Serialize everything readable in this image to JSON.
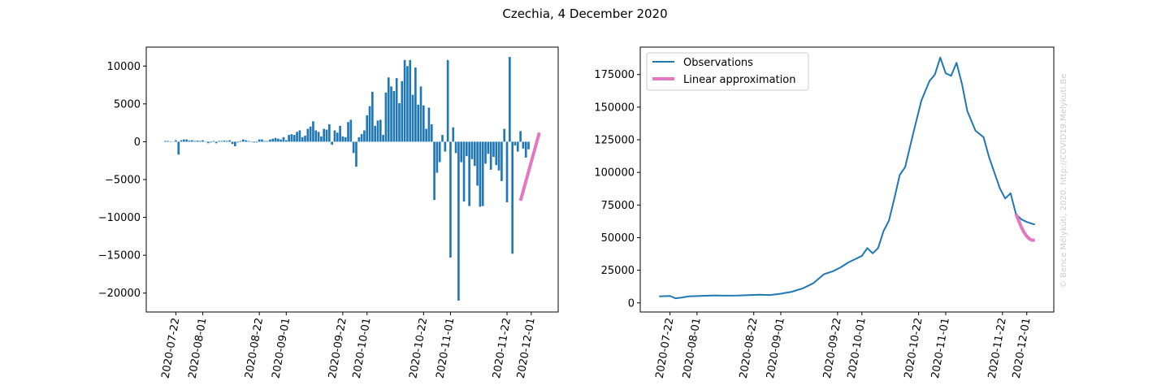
{
  "figure": {
    "title": "Czechia, 4 December 2020",
    "watermark": "© Bence Mélykúti, 2020. http://COVID19.Melykuti.Be"
  },
  "colors": {
    "observations": "#1f77b4",
    "approximation": "#e377c2"
  },
  "chart_data": [
    {
      "type": "bar",
      "date_ticks": [
        "2020-07-22",
        "2020-08-01",
        "2020-08-22",
        "2020-09-01",
        "2020-09-22",
        "2020-10-01",
        "2020-10-22",
        "2020-11-01",
        "2020-11-22",
        "2020-12-01"
      ],
      "y_ticks": [
        "10000",
        "5000",
        "0",
        "−5000",
        "−10000",
        "−15000",
        "−20000"
      ],
      "xlim": [
        "2020-07-11",
        "2020-12-11"
      ],
      "ylim": [
        -22500,
        12500
      ],
      "start_date": "2020-07-18",
      "values": [
        100,
        100,
        50,
        0,
        200,
        -1700,
        200,
        300,
        300,
        150,
        200,
        100,
        150,
        100,
        200,
        50,
        -200,
        -100,
        100,
        -200,
        100,
        100,
        150,
        100,
        200,
        -300,
        -600,
        -100,
        100,
        300,
        200,
        100,
        -50,
        -100,
        -100,
        300,
        300,
        100,
        100,
        300,
        400,
        500,
        400,
        300,
        600,
        200,
        900,
        1000,
        900,
        1300,
        1500,
        600,
        800,
        1700,
        2000,
        2700,
        1500,
        1300,
        700,
        1700,
        1600,
        2300,
        -400,
        1500,
        1200,
        2100,
        700,
        600,
        2600,
        2900,
        -1500,
        -3300,
        600,
        1000,
        1500,
        3500,
        4700,
        6600,
        2100,
        2800,
        2900,
        900,
        6500,
        8500,
        7300,
        6700,
        8400,
        5100,
        8000,
        10800,
        10000,
        10800,
        6200,
        9800,
        4900,
        7300,
        4800,
        1700,
        4500,
        2300,
        -7700,
        -4100,
        -2700,
        900,
        -1300,
        10800,
        -15300,
        1900,
        -1500,
        -21000,
        -2700,
        -7900,
        -1900,
        -8500,
        -2300,
        -3200,
        -5800,
        -8600,
        -8500,
        -2900,
        -1600,
        -3700,
        -2000,
        -3100,
        -3800,
        -5200,
        1700,
        -8000,
        11200,
        -14800,
        -500,
        -1300,
        1400,
        -900,
        -2100,
        -1000
      ],
      "series": [
        {
          "name": "",
          "kind": "linear",
          "x": [
            "2020-11-27",
            "2020-12-04"
          ],
          "y": [
            -7800,
            1200
          ]
        }
      ]
    },
    {
      "type": "line",
      "date_ticks": [
        "2020-07-22",
        "2020-08-01",
        "2020-08-22",
        "2020-09-01",
        "2020-09-22",
        "2020-10-01",
        "2020-10-22",
        "2020-11-01",
        "2020-11-22",
        "2020-12-01"
      ],
      "y_ticks": [
        "0",
        "25000",
        "50000",
        "75000",
        "100000",
        "125000",
        "150000",
        "175000"
      ],
      "xlim": [
        "2020-07-11",
        "2020-12-11"
      ],
      "ylim": [
        -7000,
        196000
      ],
      "legend": [
        "Observations",
        "Linear approximation"
      ],
      "legend_position": "top-left",
      "series": [
        {
          "name": "Observations",
          "x": [
            "2020-07-18",
            "2020-07-22",
            "2020-07-24",
            "2020-07-26",
            "2020-07-29",
            "2020-08-02",
            "2020-08-05",
            "2020-08-08",
            "2020-08-12",
            "2020-08-16",
            "2020-08-20",
            "2020-08-24",
            "2020-08-28",
            "2020-09-01",
            "2020-09-05",
            "2020-09-09",
            "2020-09-13",
            "2020-09-17",
            "2020-09-20",
            "2020-09-23",
            "2020-09-26",
            "2020-09-29",
            "2020-10-01",
            "2020-10-03",
            "2020-10-05",
            "2020-10-07",
            "2020-10-09",
            "2020-10-11",
            "2020-10-13",
            "2020-10-15",
            "2020-10-17",
            "2020-10-20",
            "2020-10-23",
            "2020-10-26",
            "2020-10-28",
            "2020-10-30",
            "2020-11-01",
            "2020-11-03",
            "2020-11-05",
            "2020-11-07",
            "2020-11-09",
            "2020-11-12",
            "2020-11-15",
            "2020-11-17",
            "2020-11-19",
            "2020-11-21",
            "2020-11-23",
            "2020-11-25",
            "2020-11-27",
            "2020-11-29",
            "2020-12-01",
            "2020-12-04"
          ],
          "y": [
            5000,
            5300,
            3500,
            4000,
            5000,
            5300,
            5500,
            5700,
            5500,
            5600,
            5900,
            6200,
            6000,
            7000,
            8500,
            11000,
            15000,
            22000,
            24000,
            27000,
            31000,
            34000,
            36000,
            42000,
            38000,
            42000,
            55000,
            63000,
            80000,
            98000,
            104000,
            130000,
            155000,
            170000,
            175000,
            188000,
            176000,
            174000,
            184000,
            168000,
            147000,
            132000,
            127000,
            112000,
            100000,
            88000,
            80000,
            84000,
            68000,
            64000,
            62000,
            60000
          ]
        },
        {
          "name": "Linear approximation",
          "kind": "decay",
          "x": [
            "2020-11-27",
            "2020-11-28",
            "2020-11-29",
            "2020-11-30",
            "2020-12-01",
            "2020-12-02",
            "2020-12-03",
            "2020-12-04"
          ],
          "y": [
            68000,
            63000,
            58000,
            54000,
            51000,
            49000,
            48000,
            48000
          ]
        }
      ]
    }
  ]
}
